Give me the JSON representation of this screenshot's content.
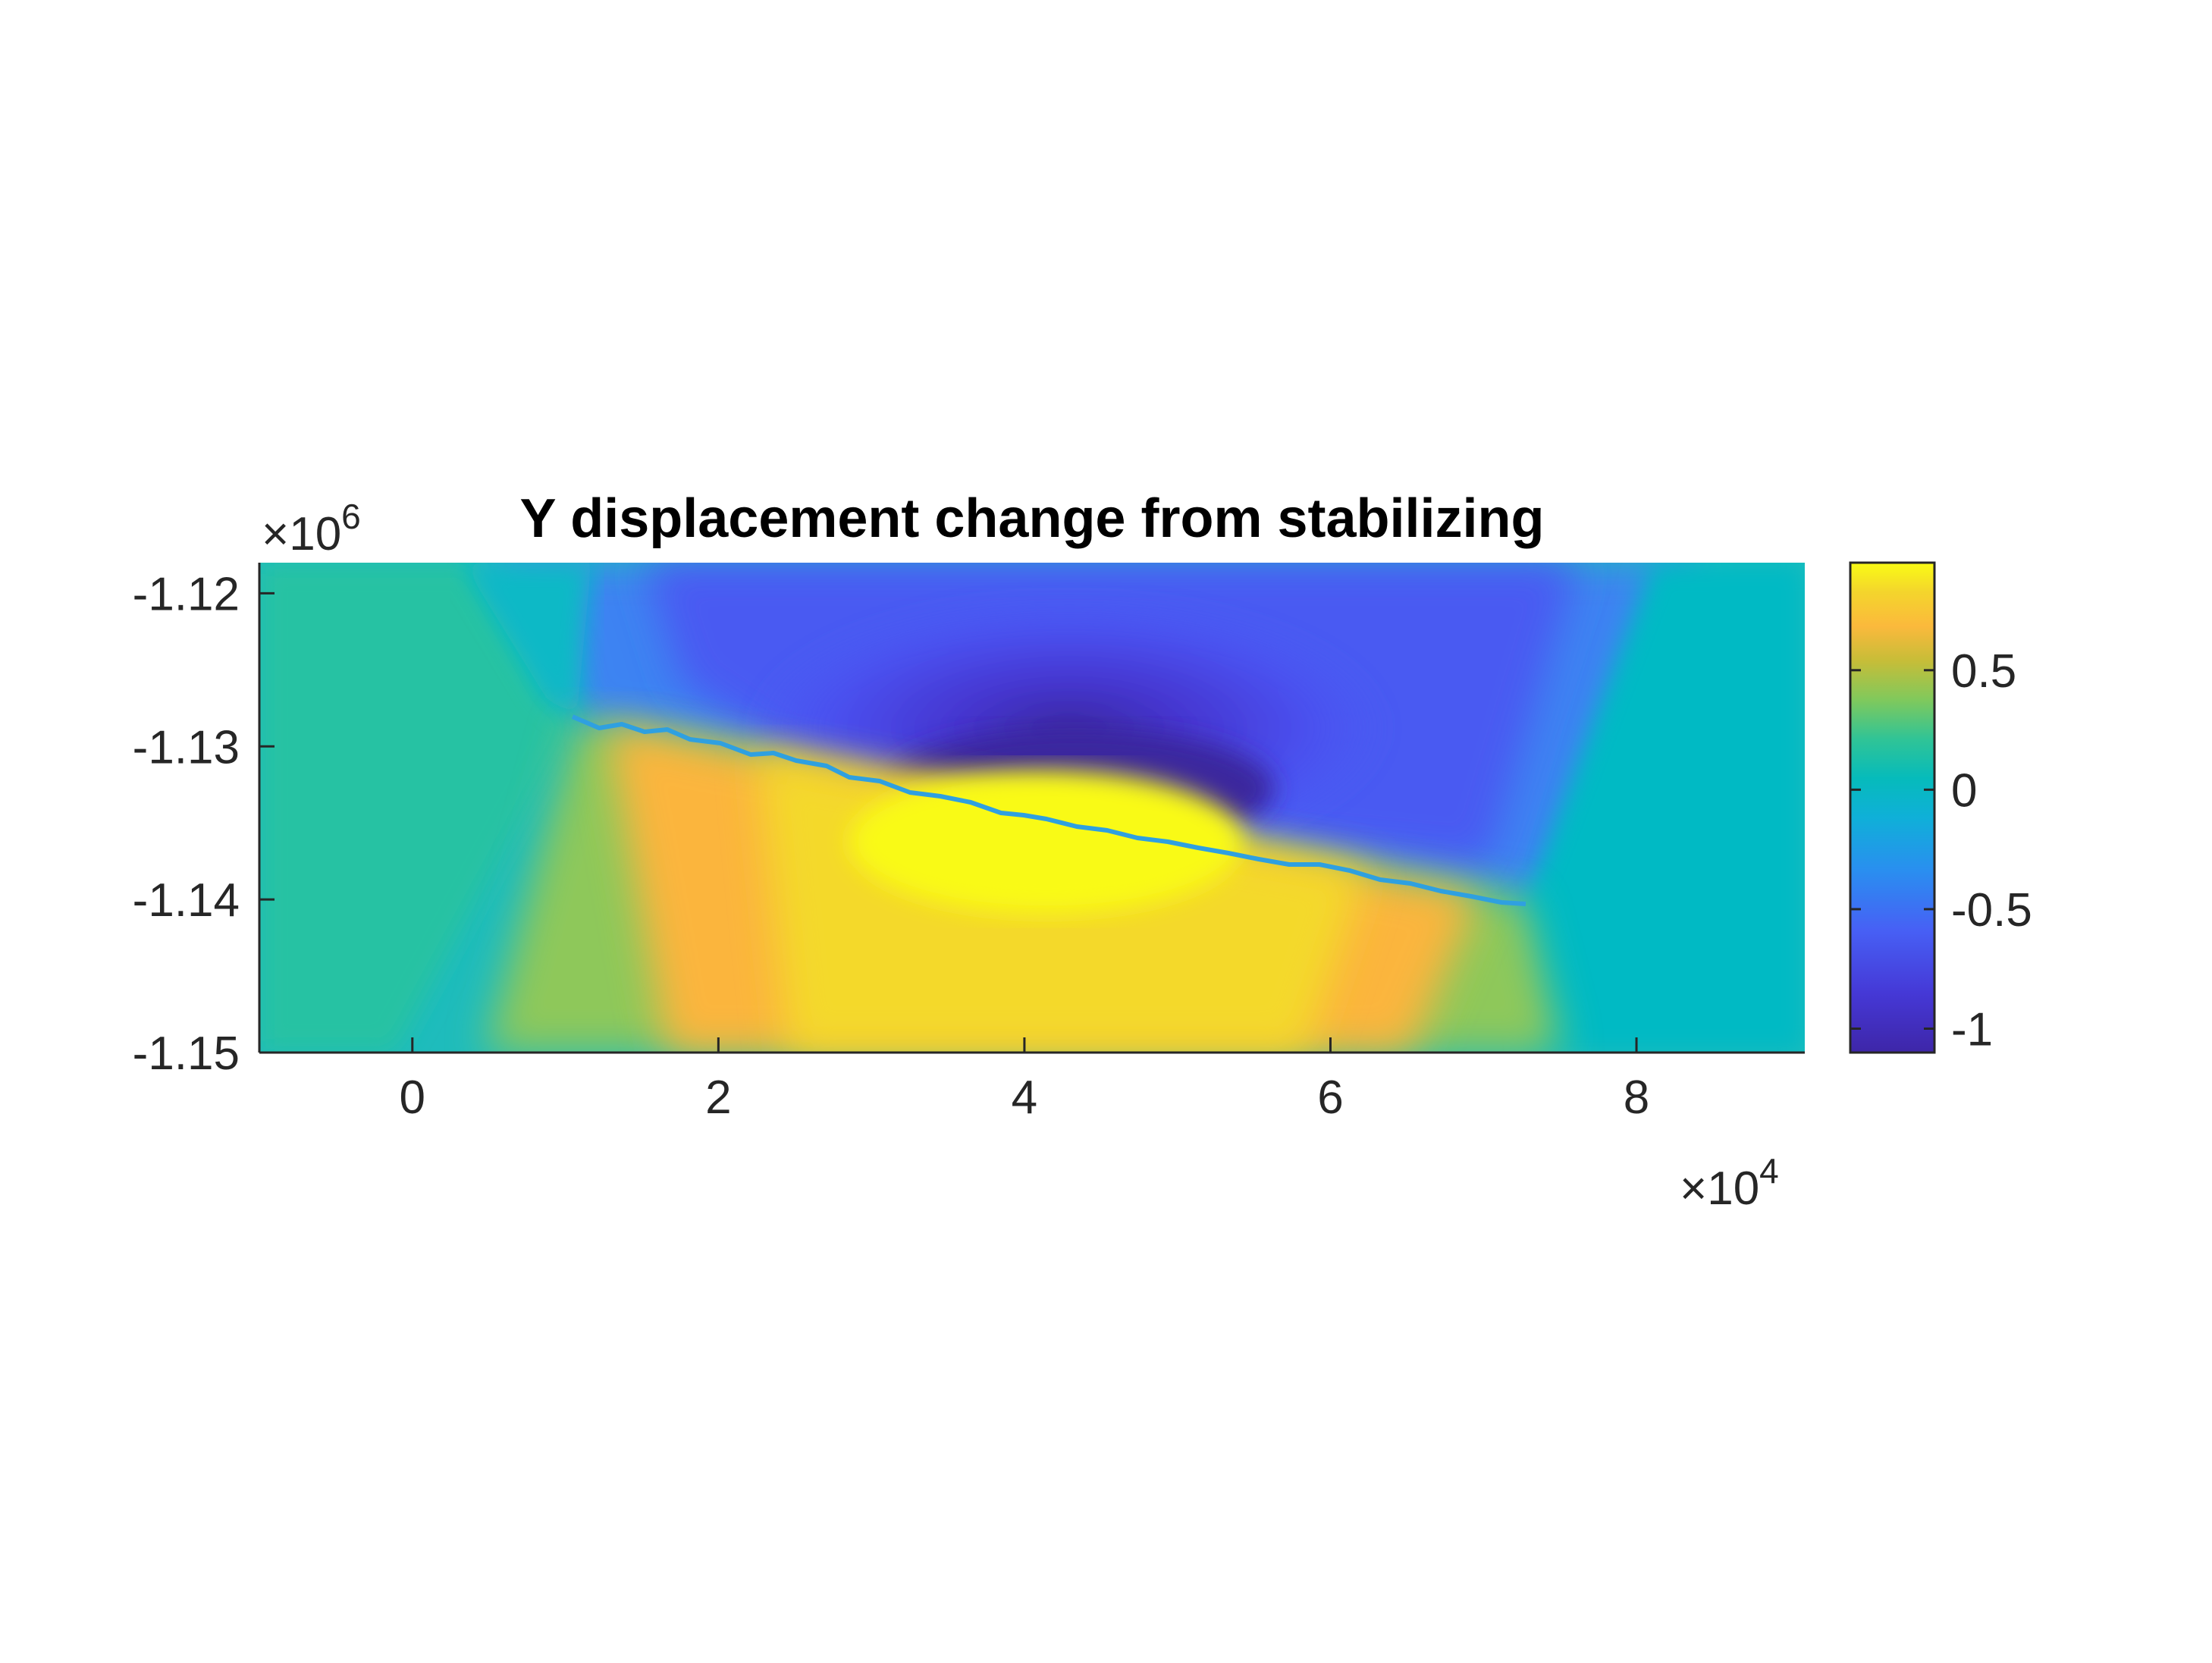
{
  "chart_data": {
    "type": "heatmap",
    "title": "Y displacement change from stabilizing",
    "xlabel": "",
    "ylabel": "",
    "x_multiplier": "×10",
    "x_exponent": "4",
    "y_multiplier": "×10",
    "y_exponent": "6",
    "xlim": [
      -1.0,
      9.1
    ],
    "ylim": [
      -1.15,
      -1.118
    ],
    "xticks": [
      0,
      2,
      4,
      6,
      8
    ],
    "xtick_labels": [
      "0",
      "2",
      "4",
      "6",
      "8"
    ],
    "yticks": [
      -1.12,
      -1.13,
      -1.14,
      -1.15
    ],
    "ytick_labels": [
      "-1.12",
      "-1.13",
      "-1.14",
      "-1.15"
    ],
    "fault_trace": {
      "start": [
        1.05,
        -1.1284
      ],
      "end": [
        7.3,
        -1.1404
      ],
      "description_note": "displacement discontinuity separating negative (above) and positive (below) regions"
    },
    "colorbar": {
      "colormap": "parula",
      "limits": [
        -1.1,
        0.95
      ],
      "ticks": [
        0.5,
        0,
        -0.5,
        -1
      ],
      "tick_labels": [
        "0.5",
        "0",
        "-0.5",
        "-1"
      ]
    },
    "field_extremes": {
      "min_value": -1.1,
      "min_location": [
        4.7,
        -1.134
      ],
      "max_value": 0.95,
      "max_location": [
        4.2,
        -1.135
      ]
    },
    "grid": false,
    "legend": "none"
  },
  "colors": {
    "parula_low": "#3e26a8",
    "parula_mid_blue": "#4261f6",
    "parula_cyan": "#03b8c7",
    "parula_green": "#36c68c",
    "parula_orange": "#fcb93c",
    "parula_yellow": "#f9fb15",
    "axis": "#262626",
    "title": "#000000"
  }
}
